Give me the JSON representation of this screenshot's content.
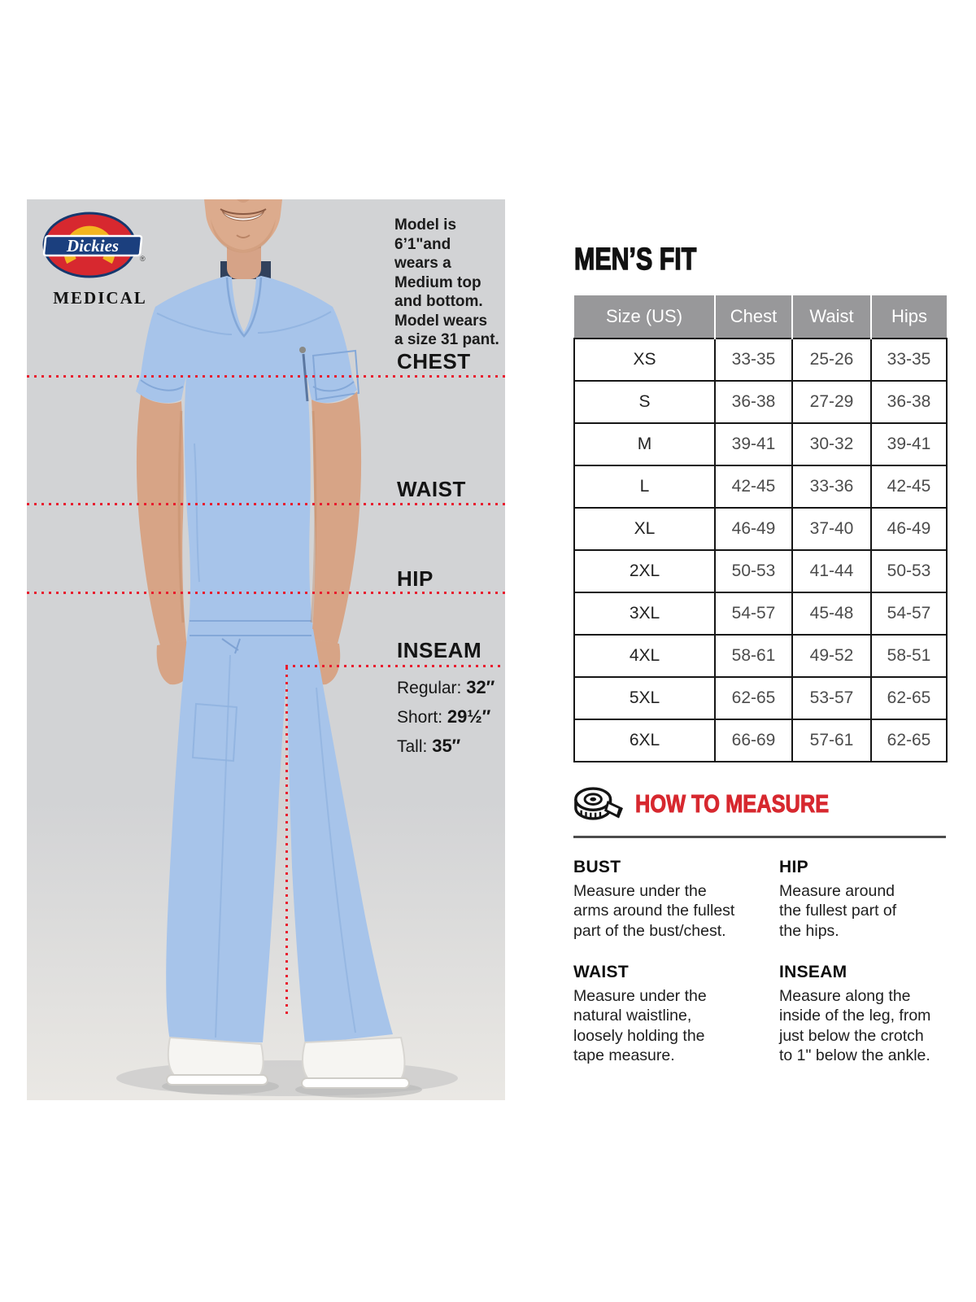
{
  "brand": {
    "name": "Dickies",
    "division": "MEDICAL",
    "registered": "®"
  },
  "title": "MEN’S FIT",
  "photo": {
    "model_note_lines": [
      "Model is",
      "6’1\"and",
      "wears a",
      "Medium top",
      "and bottom.",
      "Model wears",
      "a size 31 pant."
    ],
    "labels": {
      "chest": "CHEST",
      "waist": "WAIST",
      "hip": "HIP",
      "inseam": "INSEAM"
    },
    "inseam_options": [
      {
        "label": "Regular:",
        "value": "32″"
      },
      {
        "label": "Short:",
        "value": "29½″"
      },
      {
        "label": "Tall:",
        "value": "35″"
      }
    ]
  },
  "size_table": {
    "columns": [
      "Size (US)",
      "Chest",
      "Waist",
      "Hips"
    ],
    "column_keys": [
      "size",
      "chest",
      "waist",
      "hips"
    ],
    "rows": [
      [
        "XS",
        "33-35",
        "25-26",
        "33-35"
      ],
      [
        "S",
        "36-38",
        "27-29",
        "36-38"
      ],
      [
        "M",
        "39-41",
        "30-32",
        "39-41"
      ],
      [
        "L",
        "42-45",
        "33-36",
        "42-45"
      ],
      [
        "XL",
        "46-49",
        "37-40",
        "46-49"
      ],
      [
        "2XL",
        "50-53",
        "41-44",
        "50-53"
      ],
      [
        "3XL",
        "54-57",
        "45-48",
        "54-57"
      ],
      [
        "4XL",
        "58-61",
        "49-52",
        "58-51"
      ],
      [
        "5XL",
        "62-65",
        "53-57",
        "62-65"
      ],
      [
        "6XL",
        "66-69",
        "57-61",
        "62-65"
      ]
    ]
  },
  "how_to_measure": {
    "title": "HOW TO MEASURE",
    "icon": "tape-measure-icon",
    "sections": [
      {
        "title": "BUST",
        "lines": [
          "Measure under the",
          "arms around the fullest",
          "part of the bust/chest."
        ]
      },
      {
        "title": "WAIST",
        "lines": [
          "Measure under the",
          "natural waistline,",
          "loosely holding the",
          "tape measure."
        ]
      },
      {
        "title": "HIP",
        "lines": [
          "Measure around",
          "the fullest part of",
          "the hips."
        ]
      },
      {
        "title": "INSEAM",
        "lines": [
          "Measure along the",
          "inside of the leg, from",
          "just below the crotch",
          "to 1\" below the ankle."
        ]
      }
    ]
  },
  "colors": {
    "accent_red": "#d7282f",
    "dotted_line_red": "#e81c2e",
    "table_header_gray": "#98989a",
    "photo_background": "#d2d3d5",
    "scrub_blue": "#a7c4ea",
    "logo_red": "#d7282f",
    "logo_blue": "#1b3f7e",
    "logo_yellow": "#f3b51f"
  }
}
